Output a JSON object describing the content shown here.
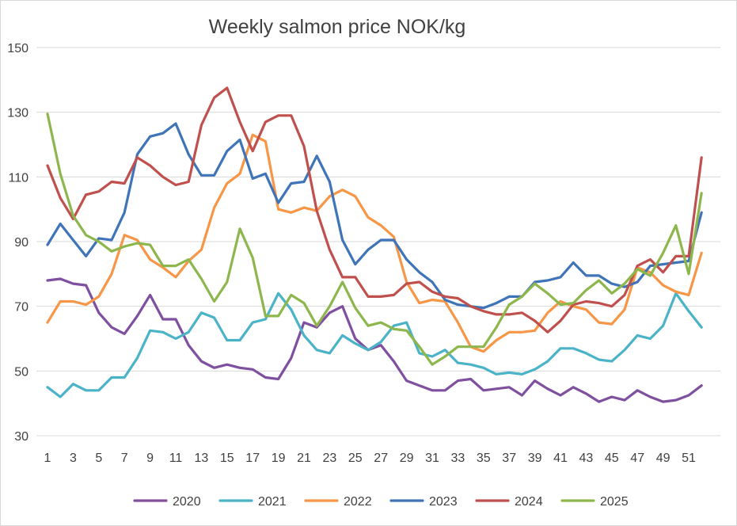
{
  "chart_data": {
    "type": "line",
    "title": "Weekly salmon price NOK/kg",
    "xlabel": "",
    "ylabel": "",
    "ylim": [
      30,
      150
    ],
    "yticks": [
      30,
      50,
      70,
      90,
      110,
      130,
      150
    ],
    "xlim": [
      1,
      52
    ],
    "xticks": [
      1,
      3,
      5,
      7,
      9,
      11,
      13,
      15,
      17,
      19,
      21,
      23,
      25,
      27,
      29,
      31,
      33,
      35,
      37,
      39,
      41,
      43,
      45,
      47,
      49,
      51
    ],
    "grid": "horizontal",
    "legend": "bottom",
    "x": [
      1,
      2,
      3,
      4,
      5,
      6,
      7,
      8,
      9,
      10,
      11,
      12,
      13,
      14,
      15,
      16,
      17,
      18,
      19,
      20,
      21,
      22,
      23,
      24,
      25,
      26,
      27,
      28,
      29,
      30,
      31,
      32,
      33,
      34,
      35,
      36,
      37,
      38,
      39,
      40,
      41,
      42,
      43,
      44,
      45,
      46,
      47,
      48,
      49,
      50,
      51,
      52
    ],
    "series": [
      {
        "name": "2020",
        "color": "#7f4fa0",
        "values": [
          78,
          78.5,
          77,
          76.5,
          68,
          63.5,
          61.5,
          67,
          73.5,
          66,
          66,
          58,
          53,
          51,
          52,
          51,
          50.5,
          48,
          47.5,
          54,
          65,
          63.5,
          68,
          70,
          60,
          56.5,
          58,
          53,
          47,
          45.5,
          44,
          44,
          47,
          47.5,
          44,
          44.5,
          45,
          42.5,
          47,
          44.5,
          42.5,
          45,
          43,
          40.5,
          42,
          41,
          44,
          42,
          40.5,
          41,
          42.5,
          45.5
        ]
      },
      {
        "name": "2021",
        "color": "#4bb3c8",
        "values": [
          45,
          42,
          46,
          44,
          44,
          48,
          48,
          54,
          62.5,
          62,
          60,
          62,
          68,
          66.5,
          59.5,
          59.5,
          65,
          66,
          74,
          69,
          61,
          56.5,
          55.5,
          61,
          58.5,
          56.5,
          59,
          64,
          65,
          55.5,
          54.5,
          56.5,
          52.5,
          52,
          51,
          49,
          49.5,
          49,
          50.5,
          53,
          57,
          57,
          55.5,
          53.5,
          53,
          56.5,
          61,
          60,
          64,
          74,
          68.5,
          63.5
        ]
      },
      {
        "name": "2022",
        "color": "#f79646",
        "values": [
          65,
          71.5,
          71.5,
          70.5,
          73,
          80,
          92,
          90.5,
          84.5,
          82,
          79,
          84,
          87.5,
          100.5,
          108,
          111,
          123,
          121,
          100,
          99,
          100.5,
          99.5,
          104,
          106,
          104,
          97.5,
          95,
          91.5,
          77.5,
          71,
          72,
          71.5,
          65,
          57.5,
          56,
          59.5,
          62,
          62,
          62.5,
          68,
          71.5,
          70,
          69,
          65,
          64.5,
          69,
          82,
          80.5,
          76.5,
          74.5,
          73.5,
          86.5
        ]
      },
      {
        "name": "2023",
        "color": "#3f74b8",
        "values": [
          89,
          95.5,
          90.5,
          85.5,
          91,
          90.5,
          99,
          117,
          122.5,
          123.5,
          126.5,
          117,
          110.5,
          110.5,
          118,
          121.5,
          109.5,
          111,
          102,
          108,
          108.5,
          116.5,
          108.5,
          90.5,
          83,
          87.5,
          90.5,
          90.5,
          84.5,
          80.5,
          77.5,
          72,
          70.5,
          70,
          69.5,
          71,
          73,
          73,
          77.5,
          78,
          79,
          83.5,
          79.5,
          79.5,
          77,
          76,
          77.5,
          82.5,
          83,
          83.5,
          84,
          99
        ]
      },
      {
        "name": "2024",
        "color": "#c0504d",
        "values": [
          113.5,
          103.5,
          97,
          104.5,
          105.5,
          108.5,
          108,
          116,
          113.5,
          110,
          107.5,
          108.5,
          126,
          134.5,
          137.5,
          127,
          118,
          127,
          129,
          129,
          119.5,
          99.5,
          87.5,
          79,
          79,
          73,
          73,
          73.5,
          77,
          77.5,
          74.5,
          73,
          72.5,
          70,
          68.5,
          67.5,
          67.5,
          68,
          65.5,
          62,
          65.5,
          70.5,
          71.5,
          71,
          70,
          73.5,
          82.5,
          84.5,
          80.5,
          85.5,
          85.5,
          116
        ]
      },
      {
        "name": "2025",
        "color": "#8db74d",
        "values": [
          129.5,
          111,
          98,
          92,
          90,
          87,
          88.5,
          89.5,
          89,
          82.5,
          82.5,
          84.5,
          78.5,
          71.5,
          77.5,
          94,
          85,
          67,
          67,
          73.5,
          71,
          64,
          70,
          77.5,
          69.5,
          64,
          65,
          63,
          62.5,
          57.5,
          52,
          54.5,
          57.5,
          57.5,
          57.5,
          63.5,
          70.5,
          73,
          77,
          74,
          70.5,
          71,
          75,
          78,
          74,
          77,
          81.5,
          79.5,
          86.5,
          95,
          80,
          105
        ]
      }
    ]
  }
}
